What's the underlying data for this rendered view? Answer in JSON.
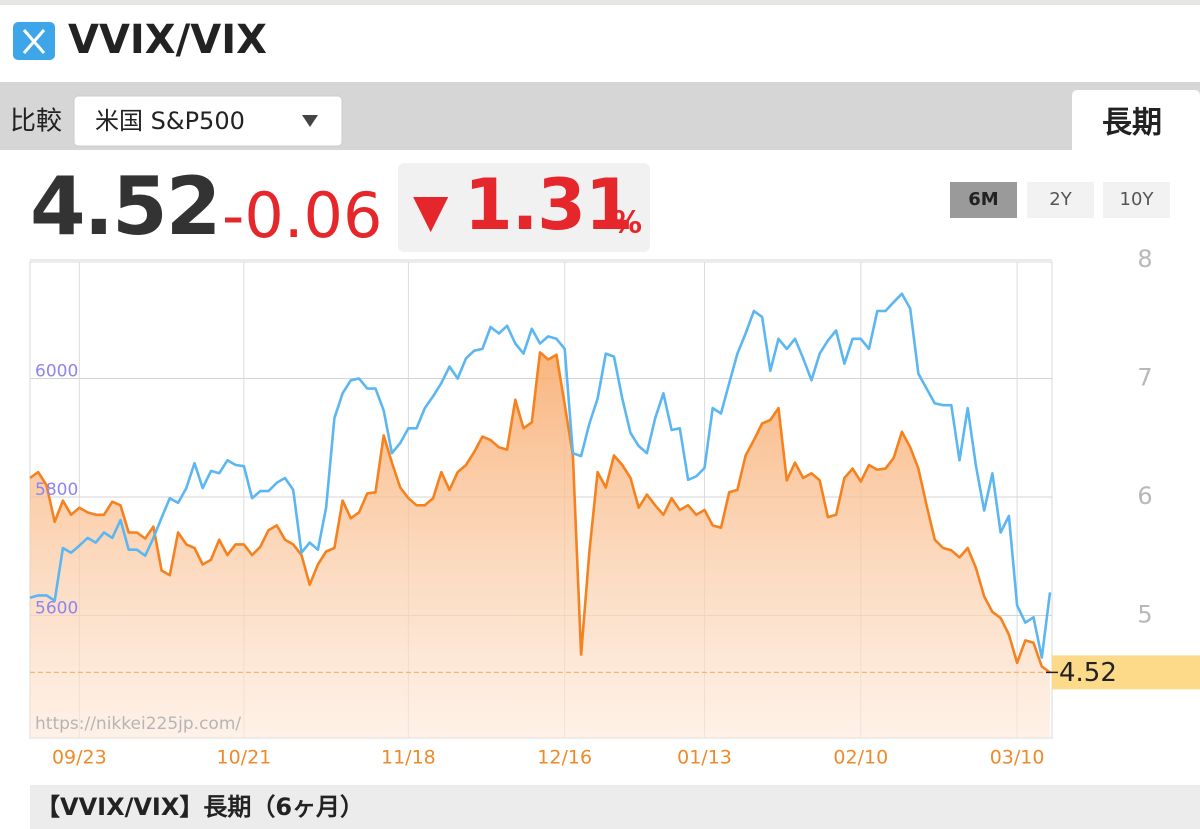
{
  "header": {
    "title": "VVIX/VIX"
  },
  "compare": {
    "label": "比較",
    "selected": "米国 S&P500"
  },
  "tab": "長期",
  "quote": {
    "price": 4.52,
    "change": -0.06,
    "arrow": "▼",
    "change_percent": 1.31,
    "percent_sign": "%"
  },
  "ranges": [
    "6M",
    "2Y",
    "10Y"
  ],
  "active_range": 0,
  "watermark": "https://nikkei225jp.com/",
  "caption": "【VVIX/VIX】長期（6ヶ月）",
  "chart_data": {
    "type": "line",
    "grid": true,
    "categories": [
      null,
      null,
      null,
      null,
      null,
      null,
      "09/23",
      null,
      null,
      null,
      null,
      null,
      null,
      null,
      null,
      null,
      null,
      null,
      null,
      null,
      null,
      null,
      null,
      null,
      null,
      null,
      "10/21",
      null,
      null,
      null,
      null,
      null,
      null,
      null,
      null,
      null,
      null,
      null,
      null,
      null,
      null,
      null,
      null,
      null,
      null,
      null,
      "11/18",
      null,
      null,
      null,
      null,
      null,
      null,
      null,
      null,
      null,
      null,
      null,
      null,
      null,
      null,
      null,
      null,
      null,
      null,
      "12/16",
      null,
      null,
      null,
      null,
      null,
      null,
      null,
      null,
      null,
      null,
      null,
      null,
      null,
      null,
      null,
      null,
      "01/13",
      null,
      null,
      null,
      null,
      null,
      null,
      null,
      null,
      null,
      null,
      null,
      null,
      null,
      null,
      null,
      null,
      null,
      null,
      "02/10",
      null,
      null,
      null,
      null,
      null,
      null,
      null,
      null,
      null,
      null,
      null,
      null,
      null,
      null,
      null,
      null,
      null,
      null,
      "03/10",
      null,
      null,
      null,
      null
    ],
    "ylim": [
      4,
      8
    ],
    "yticks": [
      5,
      6,
      7,
      8
    ],
    "y2lim": [
      5400,
      6200
    ],
    "y2ticks": [
      5600,
      5800,
      6000
    ],
    "series": [
      {
        "color": "#f5821f",
        "area": true,
        "values": [
          6.16,
          6.21,
          6.1,
          5.79,
          5.97,
          5.85,
          5.91,
          5.87,
          5.85,
          5.85,
          5.96,
          5.93,
          5.7,
          5.7,
          5.65,
          5.75,
          5.38,
          5.34,
          5.7,
          5.6,
          5.57,
          5.43,
          5.47,
          5.64,
          5.51,
          5.6,
          5.6,
          5.51,
          5.58,
          5.72,
          5.76,
          5.64,
          5.6,
          5.51,
          5.26,
          5.43,
          5.54,
          5.57,
          5.97,
          5.82,
          5.87,
          6.03,
          6.04,
          6.52,
          6.29,
          6.08,
          5.99,
          5.93,
          5.93,
          5.99,
          6.21,
          6.06,
          6.21,
          6.27,
          6.38,
          6.51,
          6.48,
          6.42,
          6.4,
          6.82,
          6.58,
          6.63,
          7.22,
          7.16,
          7.2,
          6.78,
          6.35,
          4.67,
          5.54,
          6.21,
          6.08,
          6.35,
          6.27,
          6.16,
          5.91,
          6.02,
          5.93,
          5.85,
          5.99,
          5.89,
          5.93,
          5.85,
          5.89,
          5.76,
          5.74,
          6.04,
          6.06,
          6.35,
          6.48,
          6.62,
          6.65,
          6.75,
          6.14,
          6.29,
          6.16,
          6.2,
          6.14,
          5.83,
          5.85,
          6.16,
          6.24,
          6.13,
          6.27,
          6.23,
          6.24,
          6.33,
          6.55,
          6.42,
          6.24,
          5.93,
          5.64,
          5.57,
          5.55,
          5.49,
          5.57,
          5.4,
          5.16,
          5.03,
          4.98,
          4.84,
          4.6,
          4.79,
          4.77,
          4.57,
          4.52
        ]
      },
      {
        "color": "#5bb6f2",
        "axis": "y2",
        "values": [
          5630,
          5634,
          5634,
          5625,
          5714,
          5706,
          5718,
          5731,
          5723,
          5740,
          5731,
          5761,
          5711,
          5711,
          5701,
          5731,
          5765,
          5798,
          5790,
          5815,
          5857,
          5815,
          5844,
          5840,
          5862,
          5854,
          5852,
          5798,
          5810,
          5810,
          5824,
          5832,
          5812,
          5706,
          5723,
          5711,
          5782,
          5933,
          5975,
          5997,
          6000,
          5983,
          5983,
          5946,
          5874,
          5891,
          5916,
          5916,
          5950,
          5970,
          5992,
          6020,
          6000,
          6034,
          6047,
          6050,
          6087,
          6076,
          6089,
          6059,
          6042,
          6084,
          6059,
          6071,
          6067,
          6050,
          5874,
          5869,
          5924,
          5966,
          6042,
          6037,
          5966,
          5908,
          5886,
          5874,
          5933,
          5975,
          5913,
          5916,
          5829,
          5835,
          5849,
          5950,
          5941,
          5992,
          6042,
          6076,
          6114,
          6104,
          6013,
          6067,
          6050,
          6067,
          6034,
          5997,
          6042,
          6064,
          6081,
          6025,
          6067,
          6067,
          6050,
          6114,
          6114,
          6129,
          6143,
          6118,
          6008,
          5983,
          5958,
          5955,
          5955,
          5862,
          5950,
          5852,
          5777,
          5840,
          5740,
          5768,
          5617,
          5588,
          5597,
          5529,
          5639
        ]
      }
    ]
  }
}
